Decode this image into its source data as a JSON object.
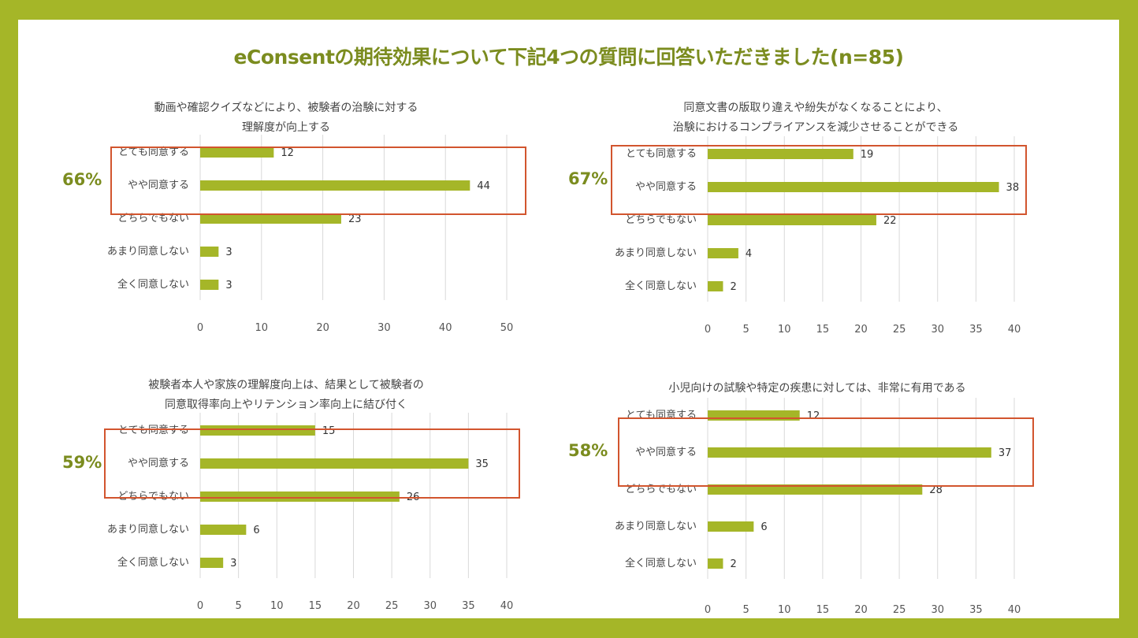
{
  "page_title": "eConsentの期待効果について下記4つの質問に回答いただきました(n=85)",
  "colors": {
    "accent": "#a5b628",
    "highlight": "#d2552e",
    "title": "#7b8c1f"
  },
  "chart_data": [
    {
      "type": "bar",
      "orientation": "horizontal",
      "title_lines": [
        "動画や確認クイズなどにより、被験者の治験に対する",
        "理解度が向上する"
      ],
      "highlight_percent": "66%",
      "categories": [
        "とても同意する",
        "やや同意する",
        "どちらでもない",
        "あまり同意しない",
        "全く同意しない"
      ],
      "values": [
        12,
        44,
        23,
        3,
        3
      ],
      "xlim": [
        0,
        50
      ],
      "xticks": [
        0,
        10,
        20,
        30,
        40,
        50
      ],
      "grid": true
    },
    {
      "type": "bar",
      "orientation": "horizontal",
      "title_lines": [
        "同意文書の版取り違えや紛失がなくなることにより、",
        "治験におけるコンプライアンスを減少させることができる"
      ],
      "highlight_percent": "67%",
      "categories": [
        "とても同意する",
        "やや同意する",
        "どちらでもない",
        "あまり同意しない",
        "全く同意しない"
      ],
      "values": [
        19,
        38,
        22,
        4,
        2
      ],
      "xlim": [
        0,
        40
      ],
      "xticks": [
        0,
        5,
        10,
        15,
        20,
        25,
        30,
        35,
        40
      ],
      "grid": true
    },
    {
      "type": "bar",
      "orientation": "horizontal",
      "title_lines": [
        "被験者本人や家族の理解度向上は、結果として被験者の",
        "同意取得率向上やリテンション率向上に結び付く"
      ],
      "highlight_percent": "59%",
      "categories": [
        "とても同意する",
        "やや同意する",
        "どちらでもない",
        "あまり同意しない",
        "全く同意しない"
      ],
      "values": [
        15,
        35,
        26,
        6,
        3
      ],
      "xlim": [
        0,
        40
      ],
      "xticks": [
        0,
        5,
        10,
        15,
        20,
        25,
        30,
        35,
        40
      ],
      "grid": true
    },
    {
      "type": "bar",
      "orientation": "horizontal",
      "title_lines": [
        "小児向けの試験や特定の疾患に対しては、非常に有用である"
      ],
      "highlight_percent": "58%",
      "categories": [
        "とても同意する",
        "やや同意する",
        "どちらでもない",
        "あまり同意しない",
        "全く同意しない"
      ],
      "values": [
        12,
        37,
        28,
        6,
        2
      ],
      "xlim": [
        0,
        40
      ],
      "xticks": [
        0,
        5,
        10,
        15,
        20,
        25,
        30,
        35,
        40
      ],
      "grid": true
    }
  ]
}
